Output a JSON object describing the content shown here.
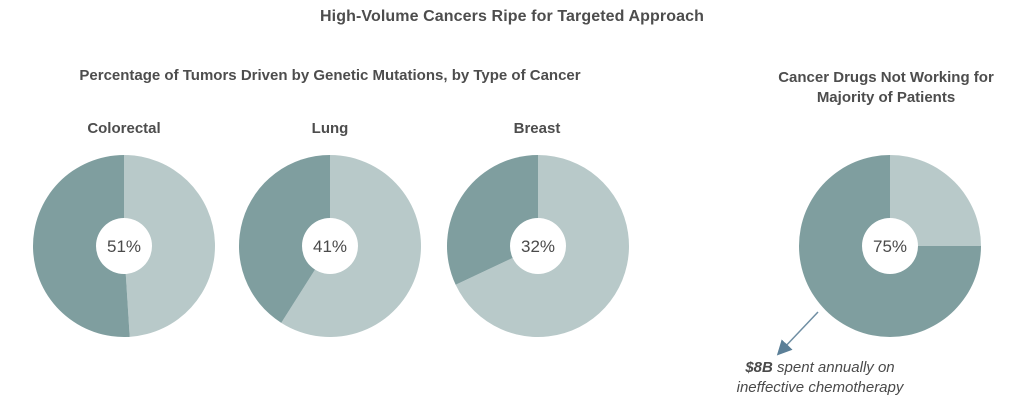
{
  "title": "High-Volume Cancers Ripe for Targeted Approach",
  "subtitle_left": "Percentage of Tumors Driven by Genetic Mutations, by Type of Cancer",
  "subtitle_right_line1": "Cancer Drugs Not Working for",
  "subtitle_right_line2": "Majority of Patients",
  "colors": {
    "dark": "#7f9e9f",
    "light": "#b8c9c9",
    "center": "#ffffff"
  },
  "chart_data": [
    {
      "type": "pie",
      "title": "Colorectal",
      "center_label": "51%",
      "slices": [
        {
          "label": "",
          "value": 51,
          "color": "dark"
        },
        {
          "label": "",
          "value": 49,
          "color": "light"
        }
      ]
    },
    {
      "type": "pie",
      "title": "Lung",
      "center_label": "41%",
      "slices": [
        {
          "label": "",
          "value": 41,
          "color": "dark"
        },
        {
          "label": "",
          "value": 59,
          "color": "light"
        }
      ]
    },
    {
      "type": "pie",
      "title": "Breast",
      "center_label": "32%",
      "slices": [
        {
          "label": "",
          "value": 32,
          "color": "dark"
        },
        {
          "label": "",
          "value": 68,
          "color": "light"
        }
      ]
    },
    {
      "type": "pie",
      "title": "",
      "center_label": "75%",
      "slices": [
        {
          "label": "",
          "value": 75,
          "color": "dark"
        },
        {
          "label": "",
          "value": 25,
          "color": "light"
        }
      ]
    }
  ],
  "annotation": {
    "amount": "$8B",
    "rest_line1": " spent annually on",
    "line2": "ineffective chemotherapy"
  }
}
